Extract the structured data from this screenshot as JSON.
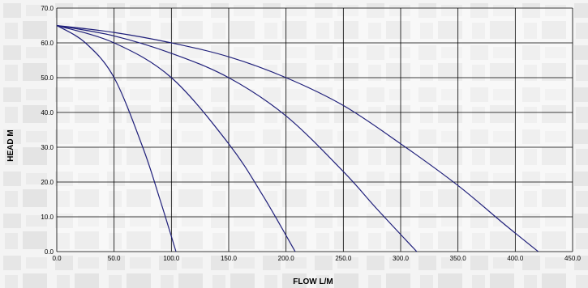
{
  "chart_data": {
    "type": "line",
    "xlabel": "FLOW L/M",
    "ylabel": "HEAD M",
    "xlim": [
      0,
      450
    ],
    "ylim": [
      0,
      70
    ],
    "x_ticks": [
      "0.0",
      "50.0",
      "100.0",
      "150.0",
      "200.0",
      "250.0",
      "300.0",
      "350.0",
      "400.0",
      "450.0"
    ],
    "y_ticks": [
      "0.0",
      "10.0",
      "20.0",
      "30.0",
      "40.0",
      "50.0",
      "60.0",
      "70.0"
    ],
    "grid": true,
    "line_color": "#1f1f7a",
    "series": [
      {
        "x": [
          0,
          25,
          50,
          75,
          90,
          104
        ],
        "y": [
          65,
          60,
          50,
          30,
          15,
          0
        ]
      },
      {
        "x": [
          0,
          50,
          100,
          150,
          180,
          208
        ],
        "y": [
          65,
          60,
          50,
          31,
          16,
          0
        ]
      },
      {
        "x": [
          0,
          50,
          100,
          150,
          200,
          250,
          280,
          314
        ],
        "y": [
          65,
          62,
          57,
          50,
          39,
          23,
          12,
          0
        ]
      },
      {
        "x": [
          0,
          50,
          100,
          150,
          200,
          250,
          300,
          350,
          390,
          420
        ],
        "y": [
          65,
          63,
          60,
          56,
          50,
          42,
          31,
          19,
          8,
          0
        ]
      }
    ]
  }
}
